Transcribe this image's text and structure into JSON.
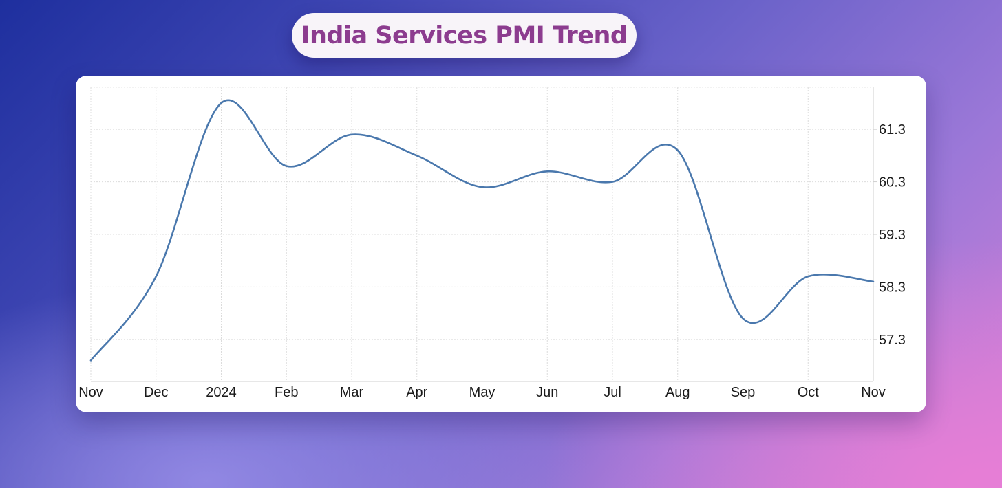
{
  "title": "India Services PMI Trend",
  "chart_data": {
    "type": "line",
    "title": "India Services PMI Trend",
    "xlabel": "",
    "ylabel": "",
    "x_ticks": [
      "Nov",
      "Dec",
      "2024",
      "Feb",
      "Mar",
      "Apr",
      "May",
      "Jun",
      "Jul",
      "Aug",
      "Sep",
      "Oct",
      "Nov"
    ],
    "y_ticks": [
      "57.3",
      "58.3",
      "59.3",
      "60.3",
      "61.3"
    ],
    "y_tick_values": [
      57.3,
      58.3,
      59.3,
      60.3,
      61.3
    ],
    "ylim": [
      56.5,
      62.1
    ],
    "grid": true,
    "line_color": "#4a78ad",
    "series": [
      {
        "x": [
          "2023-11-01",
          "2023-12-01",
          "2024-01-01",
          "2024-02-01",
          "2024-03-01",
          "2024-04-01",
          "2024-05-01",
          "2024-06-01",
          "2024-07-01",
          "2024-08-01",
          "2024-09-01",
          "2024-10-01",
          "2024-11-01"
        ],
        "values": [
          56.9,
          58.5,
          61.8,
          60.6,
          61.2,
          60.8,
          60.2,
          60.5,
          60.3,
          60.9,
          57.7,
          58.5,
          58.4
        ]
      }
    ]
  }
}
